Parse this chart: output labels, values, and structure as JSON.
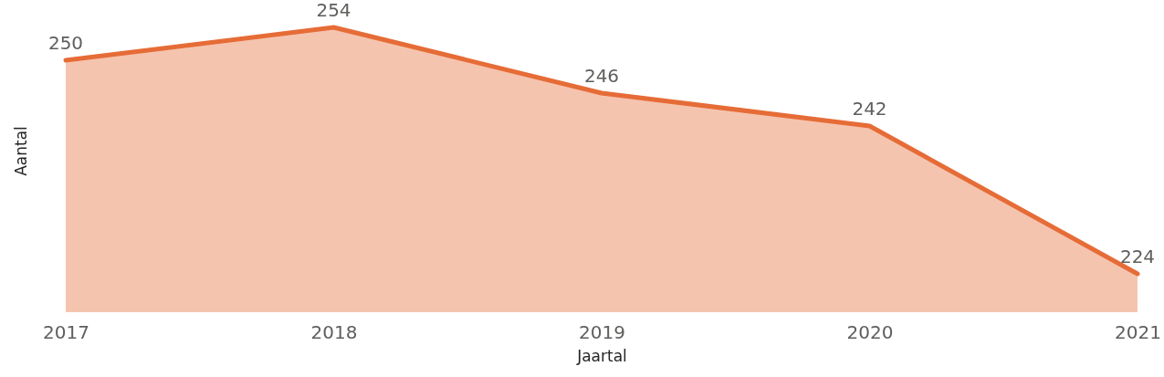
{
  "chart_data": {
    "type": "area",
    "xlabel": "Jaartal",
    "ylabel": "Aantal",
    "categories": [
      "2017",
      "2018",
      "2019",
      "2020",
      "2021"
    ],
    "series": [
      {
        "color": "#e66c37",
        "values": [
          250,
          254,
          246,
          242,
          224
        ]
      }
    ],
    "data_labels": true,
    "tick_labels": "x"
  }
}
